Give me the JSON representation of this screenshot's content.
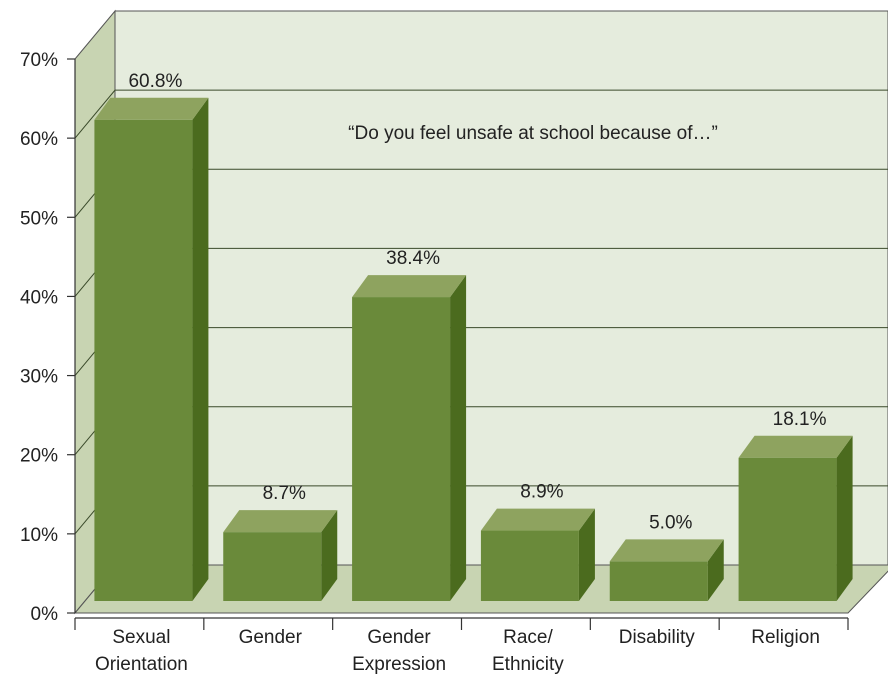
{
  "chart_data": {
    "type": "bar",
    "style": "3d",
    "title": "",
    "xlabel": "",
    "ylabel": "",
    "annotation": "“Do you feel unsafe at school because of…”",
    "categories": [
      [
        "Sexual",
        "Orientation"
      ],
      [
        "Gender"
      ],
      [
        "Gender",
        "Expression"
      ],
      [
        "Race/",
        "Ethnicity"
      ],
      [
        "Disability"
      ],
      [
        "Religion"
      ]
    ],
    "values": [
      60.8,
      8.7,
      38.4,
      8.9,
      5.0,
      18.1
    ],
    "data_labels": [
      "60.8%",
      "8.7%",
      "38.4%",
      "8.9%",
      "5.0%",
      "18.1%"
    ],
    "ylim": [
      0,
      70
    ],
    "yticks": [
      0,
      10,
      20,
      30,
      40,
      50,
      60,
      70
    ],
    "ytick_labels": [
      "0%",
      "10%",
      "20%",
      "30%",
      "40%",
      "50%",
      "60%",
      "70%"
    ],
    "grid": true,
    "colors": {
      "bar_front": "#6a8a3a",
      "bar_top": "#8ea35f",
      "bar_side": "#4b6b1e",
      "back_wall": "#e5ecdd",
      "side_wall": "#c8d4b2",
      "floor": "#c8d4b2",
      "gridline": "#3a4a2a"
    }
  }
}
